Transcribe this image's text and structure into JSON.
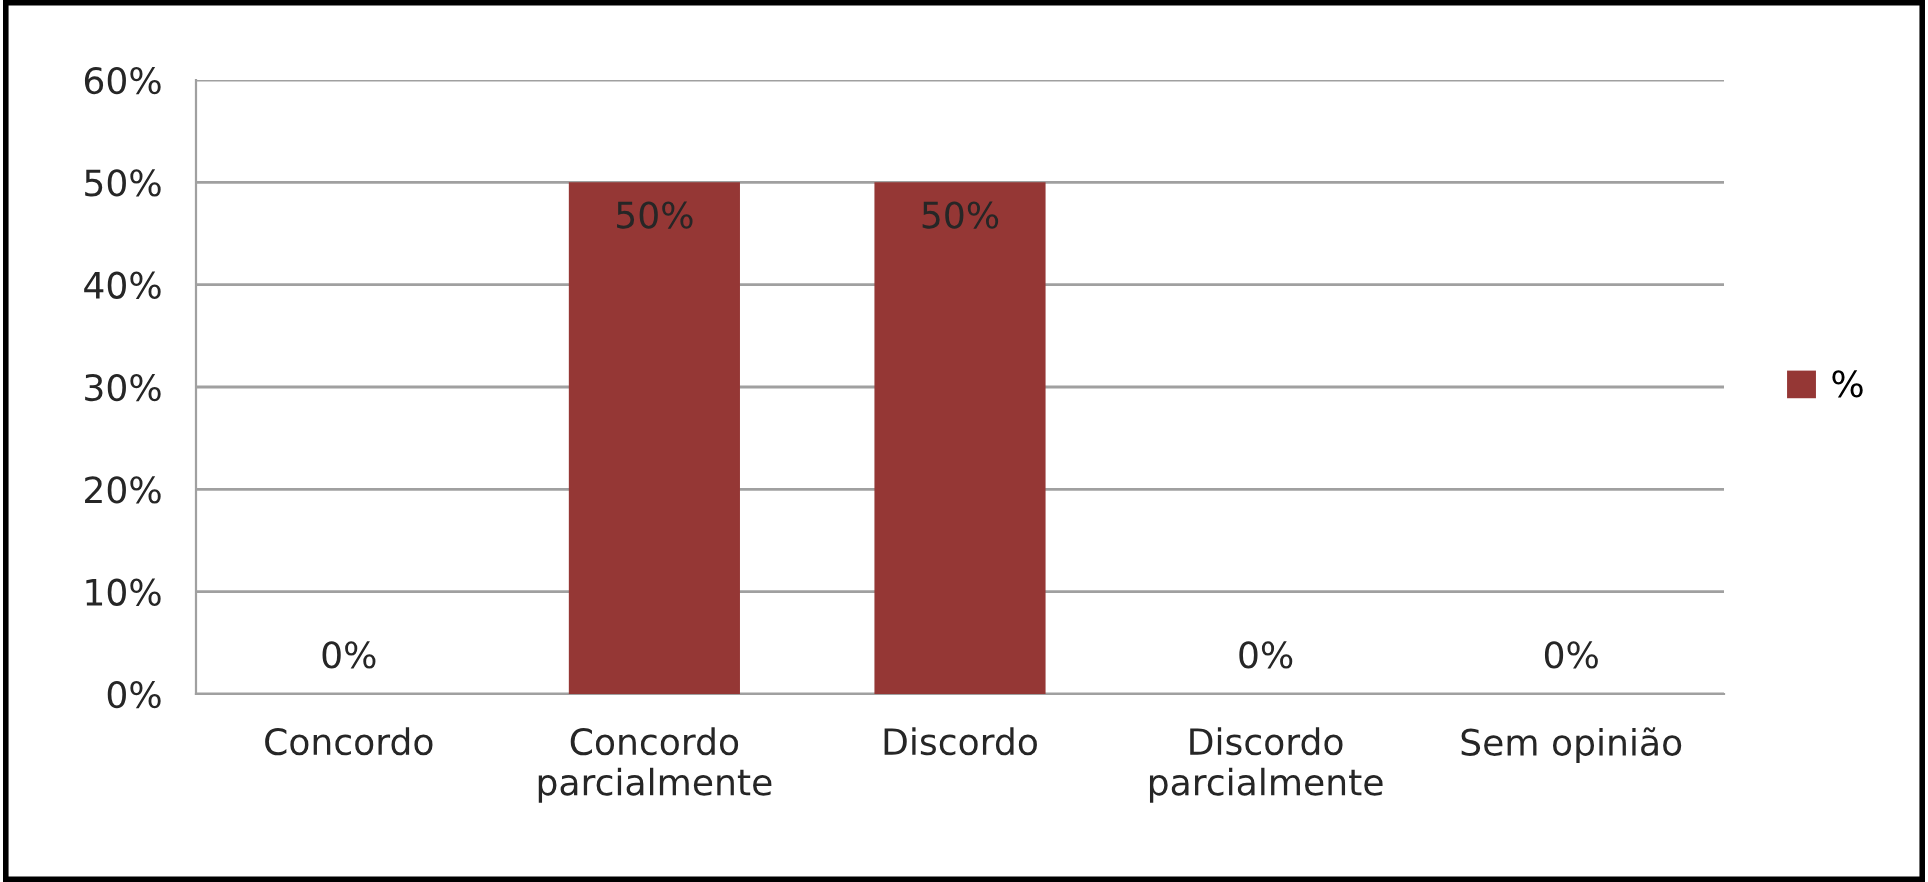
{
  "chart_data": {
    "type": "bar",
    "categories": [
      "Concordo",
      "Concordo\nparcialmente",
      "Discordo",
      "Discordo\nparcialmente",
      "Sem opinião"
    ],
    "series": [
      {
        "name": "%",
        "color": "#953735",
        "values": [
          0,
          50,
          50,
          0,
          0
        ],
        "value_labels": [
          "0%",
          "50%",
          "50%",
          "0%",
          "0%"
        ]
      }
    ],
    "ylim": [
      0,
      60
    ],
    "yticks": [
      {
        "value": 0,
        "label": "0%"
      },
      {
        "value": 10,
        "label": "10%"
      },
      {
        "value": 20,
        "label": "20%"
      },
      {
        "value": 30,
        "label": "30%"
      },
      {
        "value": 40,
        "label": "40%"
      },
      {
        "value": 50,
        "label": "50%"
      },
      {
        "value": 60,
        "label": "60%"
      }
    ],
    "grid": "y",
    "legend": "right"
  }
}
